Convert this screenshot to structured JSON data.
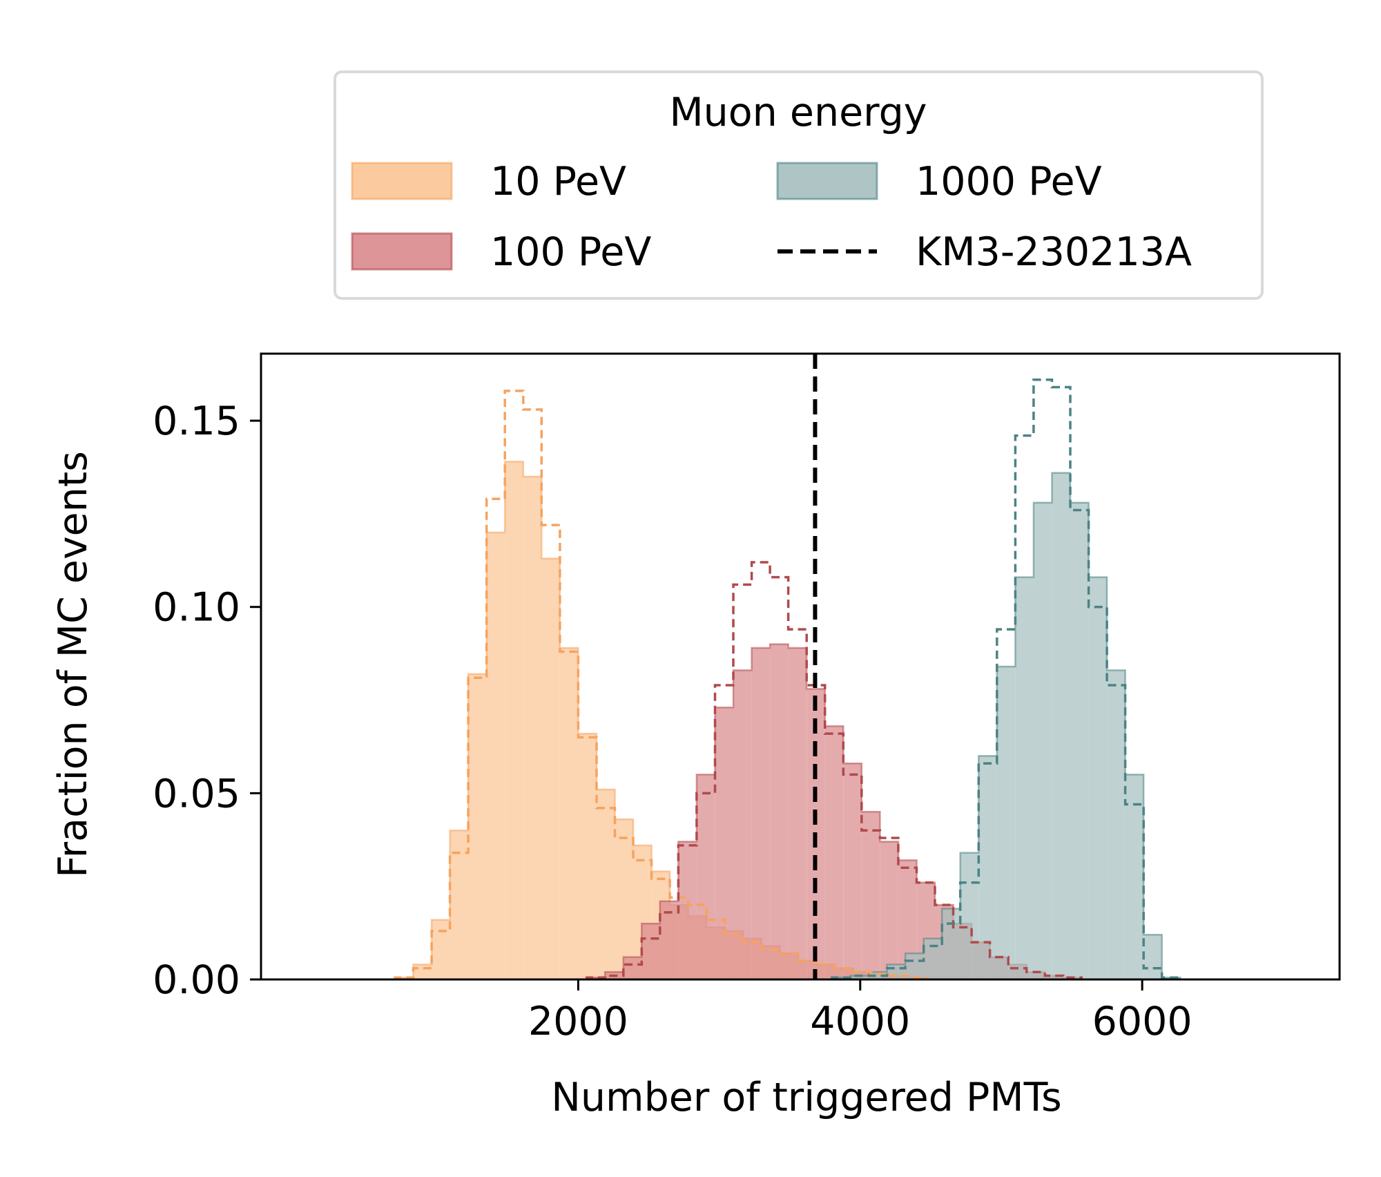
{
  "chart_data": {
    "type": "histogram",
    "xlabel": "Number of triggered PMTs",
    "ylabel": "Fraction of MC events",
    "xlim": [
      -250,
      7400
    ],
    "ylim": [
      0,
      0.168
    ],
    "x_ticks": [
      {
        "value": 2000,
        "label": "2000"
      },
      {
        "value": 4000,
        "label": "4000"
      },
      {
        "value": 6000,
        "label": "6000"
      }
    ],
    "y_ticks": [
      {
        "value": 0.0,
        "label": "0.00"
      },
      {
        "value": 0.05,
        "label": "0.05"
      },
      {
        "value": 0.1,
        "label": "0.10"
      },
      {
        "value": 0.15,
        "label": "0.15"
      }
    ],
    "grid": false,
    "legend": {
      "title": "Muon energy",
      "placement": "above",
      "columns": 2,
      "entries": [
        {
          "label": "10 PeV",
          "kind": "patch",
          "series": 0
        },
        {
          "label": "100 PeV",
          "kind": "patch",
          "series": 1
        },
        {
          "label": "1000 PeV",
          "kind": "patch",
          "series": 2
        },
        {
          "label": "KM3-230213A",
          "kind": "dashed-line",
          "series": null
        }
      ]
    },
    "reference_line": {
      "name": "KM3-230213A",
      "x": 3680,
      "color": "#000000",
      "style": "dashed"
    },
    "series": [
      {
        "name": "10 PeV",
        "fill_color": "#fbc595",
        "edge_color": "#f5a35f",
        "bin_width": 130,
        "bin_start": 700,
        "solid_values": [
          0.0005,
          0.004,
          0.016,
          0.04,
          0.082,
          0.12,
          0.139,
          0.135,
          0.113,
          0.089,
          0.066,
          0.051,
          0.043,
          0.036,
          0.029,
          0.02,
          0.017,
          0.014,
          0.013,
          0.011,
          0.009,
          0.007,
          0.005,
          0.004,
          0.003,
          0.002,
          0.0015,
          0.001,
          0.0005
        ],
        "dashed_values": [
          0.0005,
          0.003,
          0.013,
          0.034,
          0.081,
          0.129,
          0.158,
          0.153,
          0.122,
          0.088,
          0.065,
          0.046,
          0.038,
          0.032,
          0.027,
          0.022,
          0.02,
          0.016,
          0.012,
          0.01,
          0.008,
          0.007,
          0.005,
          0.004,
          0.003,
          0.002,
          0.0015,
          0.001,
          0.0005
        ]
      },
      {
        "name": "100 PeV",
        "fill_color": "#d98a8d",
        "edge_color": "#b04a4d",
        "bin_width": 130,
        "bin_start": 2060,
        "solid_values": [
          0.0005,
          0.002,
          0.006,
          0.015,
          0.021,
          0.037,
          0.055,
          0.073,
          0.083,
          0.089,
          0.09,
          0.089,
          0.078,
          0.068,
          0.058,
          0.045,
          0.037,
          0.032,
          0.026,
          0.02,
          0.015,
          0.01,
          0.006,
          0.004,
          0.002,
          0.001,
          0.0005
        ],
        "dashed_values": [
          0.0005,
          0.001,
          0.004,
          0.011,
          0.018,
          0.036,
          0.05,
          0.079,
          0.106,
          0.112,
          0.108,
          0.094,
          0.079,
          0.066,
          0.055,
          0.04,
          0.038,
          0.03,
          0.026,
          0.02,
          0.014,
          0.01,
          0.006,
          0.003,
          0.002,
          0.001,
          0.0005
        ]
      },
      {
        "name": "1000 PeV",
        "fill_color": "#a6bfbf",
        "edge_color": "#4c8384",
        "bin_width": 130,
        "bin_start": 3800,
        "solid_values": [
          0.0005,
          0.001,
          0.002,
          0.004,
          0.007,
          0.011,
          0.019,
          0.034,
          0.06,
          0.084,
          0.108,
          0.128,
          0.136,
          0.128,
          0.108,
          0.083,
          0.055,
          0.012,
          0.0005
        ],
        "dashed_values": [
          0.0005,
          0.001,
          0.001,
          0.003,
          0.005,
          0.009,
          0.015,
          0.026,
          0.058,
          0.094,
          0.146,
          0.161,
          0.159,
          0.126,
          0.1,
          0.079,
          0.047,
          0.003,
          0.0005
        ]
      }
    ]
  }
}
